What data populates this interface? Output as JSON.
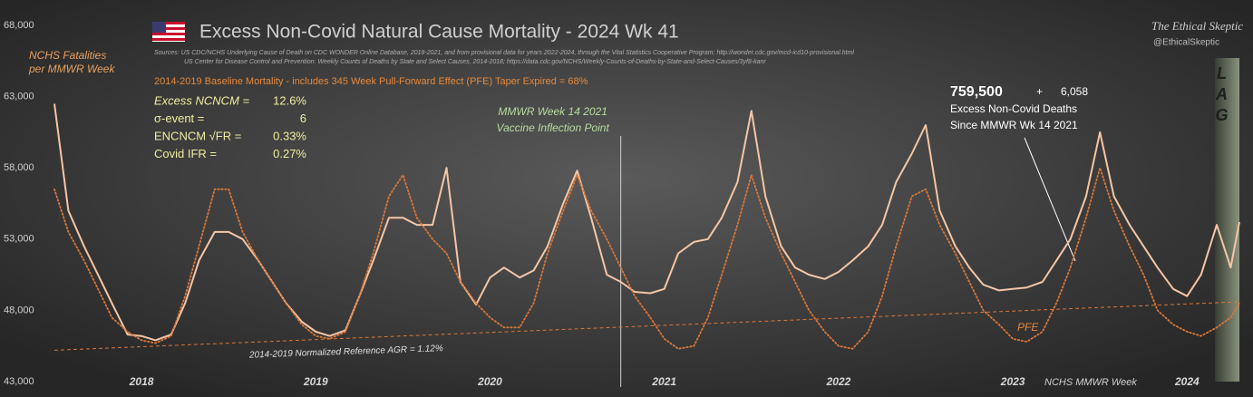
{
  "chart_data": {
    "type": "line",
    "title": "Excess Non-Covid Natural Cause Mortality - 2024 Wk 41",
    "sources": [
      "Sources:  US CDC/NCHS Underlying Cause of Death on CDC WONDER Online Database, 2018-2021, and from provisional data for years 2022-2024, through the Vital Statistics Cooperative Program; http://wonder.cdc.gov/mcd-icd10-provisional.html",
      "US Center for Disease Control and Prevention: Weekly  Counts of Deaths by State and Select Causes, 2014-2018; https://data.cdc.gov/NCHS/Weekly-Counts-of-Deaths-by-State-and-Select-Causes/3yf8-kanr"
    ],
    "y_label": [
      "NCHS Fatalities",
      "per MMWR Week"
    ],
    "x_label": "NCHS MMWR Week",
    "brand": [
      "The Ethical Skeptic",
      "@EthicalSkeptic"
    ],
    "baseline_note": "2014-2019 Baseline Mortality - includes 345 Week Pull-Forward Effect (PFE) Taper Expired =   68%",
    "stats": [
      {
        "label": "Excess NCNCM =",
        "value": "12.6%"
      },
      {
        "label": "σ-event =",
        "value": "6"
      },
      {
        "label": "ENCNCM √FR =",
        "value": "0.33%"
      },
      {
        "label": "Covid IFR =",
        "value": "0.27%"
      }
    ],
    "vaccine_marker": {
      "x": 2021.25,
      "label": [
        "MMWR Week 14 2021",
        "Vaccine Inflection Point"
      ]
    },
    "excess_callout": {
      "total": "759,500",
      "plus": "+",
      "increment": "6,058",
      "label": [
        "Excess  Non-Covid Deaths",
        "Since MMWR  Wk 14 2021"
      ]
    },
    "pfe_label": "PFE",
    "lag_band": {
      "x": [
        2024.66,
        2024.8
      ],
      "label": [
        "L",
        "A",
        "G"
      ]
    },
    "reference_line": {
      "label": "2014-2019 Normalized Reference AGR = 1.12%",
      "x": [
        2018,
        2024.8
      ],
      "values": [
        45200,
        48600
      ],
      "color": "#d9773a"
    },
    "xlim": [
      2018,
      2024.8
    ],
    "ylim": [
      43000,
      68000
    ],
    "xticks": [
      {
        "value": 2018.5,
        "label": "2018"
      },
      {
        "value": 2019.5,
        "label": "2019"
      },
      {
        "value": 2020.5,
        "label": "2020"
      },
      {
        "value": 2021.5,
        "label": "2021"
      },
      {
        "value": 2022.5,
        "label": "2022"
      },
      {
        "value": 2023.5,
        "label": "2023"
      },
      {
        "value": 2024.5,
        "label": "2024"
      }
    ],
    "yticks": [
      {
        "value": 43000,
        "label": "43,000"
      },
      {
        "value": 48000,
        "label": "48,000"
      },
      {
        "value": 53000,
        "label": "53,000"
      },
      {
        "value": 58000,
        "label": "58,000"
      },
      {
        "value": 63000,
        "label": "63,000"
      },
      {
        "value": 68000,
        "label": "68,000"
      }
    ],
    "grid": false,
    "x": [
      2018,
      2018.08,
      2018.17,
      2018.25,
      2018.33,
      2018.42,
      2018.5,
      2018.58,
      2018.67,
      2018.75,
      2018.83,
      2018.92,
      2019,
      2019.08,
      2019.17,
      2019.25,
      2019.33,
      2019.42,
      2019.5,
      2019.58,
      2019.67,
      2019.75,
      2019.83,
      2019.92,
      2020,
      2020.08,
      2020.17,
      2020.25,
      2020.33,
      2020.42,
      2020.5,
      2020.58,
      2020.67,
      2020.75,
      2020.83,
      2020.92,
      2021,
      2021.08,
      2021.17,
      2021.25,
      2021.33,
      2021.42,
      2021.5,
      2021.58,
      2021.67,
      2021.75,
      2021.83,
      2021.92,
      2022,
      2022.08,
      2022.17,
      2022.25,
      2022.33,
      2022.42,
      2022.5,
      2022.58,
      2022.67,
      2022.75,
      2022.83,
      2022.92,
      2023,
      2023.08,
      2023.17,
      2023.25,
      2023.33,
      2023.42,
      2023.5,
      2023.58,
      2023.67,
      2023.75,
      2023.83,
      2023.92,
      2024,
      2024.08,
      2024.17,
      2024.25,
      2024.33,
      2024.42,
      2024.5,
      2024.58,
      2024.67,
      2024.75,
      2024.8
    ],
    "series": [
      {
        "color": "#f5c6a5",
        "style": "solid",
        "values": [
          62500,
          55000,
          52500,
          50500,
          48500,
          46300,
          46200,
          45900,
          46300,
          48500,
          51500,
          53500,
          53500,
          53000,
          51500,
          50000,
          48500,
          47200,
          46500,
          46200,
          46600,
          49000,
          51500,
          54500,
          54500,
          54000,
          54000,
          58000,
          50000,
          48400,
          50300,
          51000,
          50300,
          50800,
          52500,
          55500,
          57800,
          54500,
          50500,
          50000,
          49300,
          49200,
          49500,
          52000,
          52800,
          53000,
          54500,
          57000,
          62000,
          56000,
          52500,
          51000,
          50500,
          50200,
          50700,
          51500,
          52500,
          54000,
          57000,
          59000,
          61000,
          55000,
          52500,
          51000,
          49800,
          49400,
          49500,
          49600,
          50000,
          51500,
          53000,
          56000,
          60500,
          56000,
          54000,
          52500,
          51000,
          49500,
          49000,
          50500,
          54000,
          51000,
          54200
        ]
      },
      {
        "color": "#d9773a",
        "style": "dotted",
        "values": [
          56500,
          53500,
          51500,
          49500,
          47500,
          46500,
          45900,
          45700,
          46200,
          49000,
          52500,
          56500,
          56500,
          53500,
          51500,
          50000,
          48500,
          47000,
          46200,
          46000,
          46500,
          49000,
          52000,
          56000,
          57500,
          54500,
          53000,
          52000,
          50000,
          48500,
          47500,
          46800,
          46800,
          48500,
          52000,
          55000,
          57500,
          55000,
          53000,
          51000,
          49000,
          47500,
          46000,
          45300,
          45500,
          47500,
          50500,
          54000,
          57500,
          54500,
          52000,
          50000,
          48000,
          46500,
          45500,
          45300,
          46500,
          49000,
          52500,
          56000,
          56500,
          54000,
          52000,
          50000,
          48000,
          47000,
          46000,
          45800,
          46500,
          48500,
          51000,
          54500,
          58000,
          55000,
          52500,
          50500,
          48000,
          47000,
          46500,
          46200,
          46800,
          47500,
          48500
        ]
      }
    ]
  }
}
